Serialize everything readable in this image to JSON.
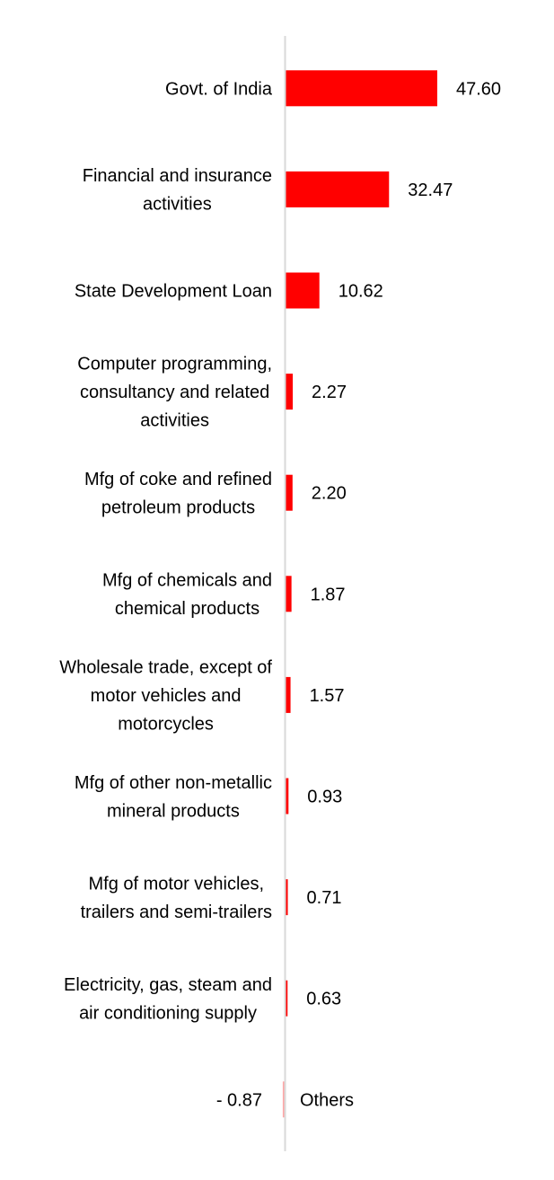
{
  "colors": {
    "bar": "#ff0000",
    "axis": "#d9d9d9",
    "text": "#000000",
    "background": "#ffffff"
  },
  "chart_data": {
    "type": "bar",
    "orientation": "horizontal",
    "title": "",
    "xlabel": "",
    "ylabel": "",
    "grid": false,
    "legend": "none",
    "xlim": [
      -1,
      47.6
    ],
    "categories": [
      "Govt. of India",
      "Financial and insurance activities",
      "State Development Loan",
      "Computer programming, consultancy and related activities",
      "Mfg of coke and refined petroleum products",
      "Mfg of chemicals and chemical products",
      "Wholesale trade, except of motor vehicles and motorcycles",
      "Mfg of other non-metallic mineral products",
      "Mfg of motor vehicles, trailers and semi-trailers",
      "Electricity, gas, steam and air conditioning supply",
      "Others"
    ],
    "category_lines": [
      [
        "Govt. of India"
      ],
      [
        "Financial and insurance",
        "activities"
      ],
      [
        "State Development Loan"
      ],
      [
        "Computer programming,",
        "consultancy and related",
        "activities"
      ],
      [
        "Mfg of coke and refined",
        "petroleum products"
      ],
      [
        "Mfg of chemicals and",
        "chemical products"
      ],
      [
        "Wholesale trade, except of",
        "motor vehicles and",
        "motorcycles"
      ],
      [
        "Mfg of other non-metallic",
        "mineral products"
      ],
      [
        "Mfg of motor vehicles,",
        "trailers and semi-trailers"
      ],
      [
        "Electricity, gas, steam and",
        "air conditioning supply"
      ],
      [
        "Others"
      ]
    ],
    "values": [
      47.6,
      32.47,
      10.62,
      2.27,
      2.2,
      1.87,
      1.57,
      0.93,
      0.71,
      0.63,
      -0.87
    ],
    "value_labels": [
      "47.60",
      "32.47",
      "10.62",
      "2.27",
      "2.20",
      "1.87",
      "1.57",
      "0.93",
      "0.71",
      "0.63",
      "- 0.87"
    ]
  }
}
